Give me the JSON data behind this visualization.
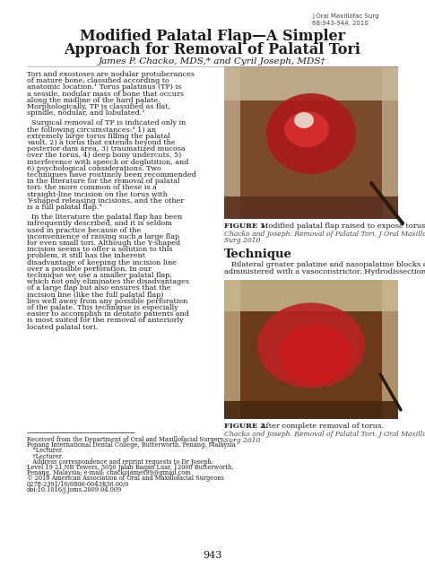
{
  "journal_ref": "J Oral Maxillofac Surg\n68:943-944, 2010",
  "title_line1": "Modified Palatal Flap—A Simpler",
  "title_line2": "Approach for Removal of Palatal Tori",
  "authors": "James P. Chacko, MDS,* and Cyril Joseph, MDS†",
  "para1": "Tori and exostoses are nodular protuberances of mature bone, classified according to anatomic location.¹ Torus palatinus (TP) is a sessile, nodular mass of bone that occurs along the midline of the hard palate. Morphologically, TP is classified as flat, spindle, nodular, and lobulated.²",
  "para2": "Surgical removal of TP is indicated only in the following circumstances:³ 1) an extremely large torus filling the palatal vault, 2) a torus that extends beyond the posterior dam area, 3) traumatized mucosa over the torus, 4) deep bony undercuts, 5) interference with speech or deglutition, and 6) psychological considerations. Two techniques have routinely been recommended in the literature for the removal of palatal tori: the more common of these is a straight-line incision on the torus with Y-shaped releasing incisions, and the other is a full palatal flap.⁴",
  "para3": "In the literature the palatal flap has been infrequently described, and it is seldom used in practice because of the inconvenience of raising such a large flap for even small tori. Although the Y-shaped incision seems to offer a solution to this problem, it still has the inherent disadvantage of keeping the incision line over a possible perforation. In our technique we use a smaller palatal flap, which not only eliminates the disadvantages of a large flap but also ensures that the incision line (like the full palatal flap) lies well away from any possible perforation of the palate. This technique is especially easier to accomplish in dentate patients and is most suited for the removal of anteriorly located palatal tori.",
  "fig1_bold": "FIGURE 1.",
  "fig1_rest": " Modified palatal flap raised to expose torus.",
  "fig1_credit1": "Chacko and Joseph. Removal of Palatal Tori. J Oral Maxillofac",
  "fig1_credit2": "Surg 2010",
  "technique_heading": "Technique",
  "tech_line1": "   Bilateral greater palatine and nasopalatine blocks are",
  "tech_line2": "administered with a vasoconstrictor. Hydrodissection",
  "fig2_bold": "FIGURE 2.",
  "fig2_rest": " After complete removal of torus.",
  "fig2_credit1": "Chacko and Joseph. Removal of Palatal Tori. J Oral Maxillofac",
  "fig2_credit2": "Surg 2010",
  "fn1": "Received from the Department of Oral and Maxillofacial Surgery,",
  "fn2": "Penang International Dental College, Butterworth, Penang, Malaysia",
  "fn3": "   *Lecturer.",
  "fn4": "   †Lecturer.",
  "fn5": "   Address correspondence and reprint requests to Dr Joseph:",
  "fn6": "Level 19 21 NB Towers, 5050 Jalan Bagan Luar, 12000 Butterworth,",
  "fn7": "Penang, Malaysia; e-mail: chackojames99@gmail.com",
  "fn8": "© 2010 American Association of Oral and Maxillofacial Surgeons",
  "fn9": "0278-2391/10/6806-0043$36.00/0",
  "fn10": "doi:10.1016/j.joms.2009.04.009",
  "page_number": "943",
  "bg_color": "#ffffff",
  "text_color": "#1a1a1a",
  "gray_color": "#444444",
  "img1_colors": {
    "bg": "#7a4a2a",
    "teeth": "#c8b89a",
    "red": "#aa1a1a",
    "inner": "#8B2020"
  },
  "img2_colors": {
    "bg": "#6a3a1a",
    "teeth": "#c8b890",
    "red": "#bb2222",
    "tissue": "#9a4040"
  }
}
